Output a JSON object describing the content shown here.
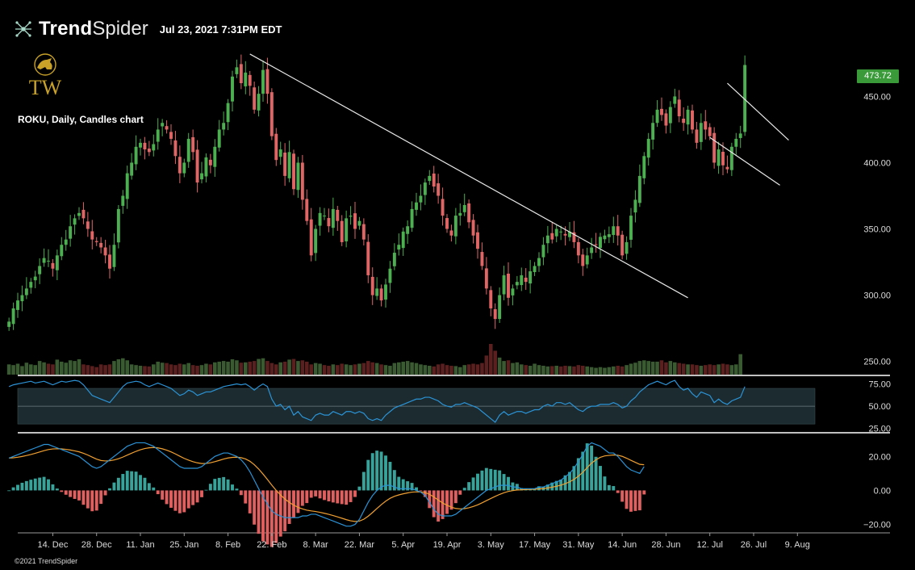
{
  "header": {
    "brand_bold": "Trend",
    "brand_light": "Spider",
    "timestamp": "Jul 23, 2021 7:31PM EDT"
  },
  "logo": {
    "initials": "TW",
    "color": "#c9a227"
  },
  "chart_title": "ROKU, Daily, Candles chart",
  "last_price_label": "473.72",
  "copyright": "©2021 TrendSpider",
  "colors": {
    "up": "#4caf50",
    "down": "#e06666",
    "volume_up": "#3a5a32",
    "volume_down": "#5a1f1f",
    "rsi_line": "#2b93d6",
    "macd_line": "#2b93d6",
    "signal_line": "#f0a030",
    "hist_up": "#37a39a",
    "hist_down": "#e06060",
    "trendline": "#e8e8e8"
  },
  "chart_data": [
    {
      "type": "candlestick",
      "title": "ROKU, Daily, Candles chart",
      "ylim": [
        240,
        485
      ],
      "y_ticks": [
        "450.00",
        "400.00",
        "350.00",
        "300.00",
        "250.00"
      ],
      "y_tick_values": [
        450,
        400,
        350,
        300,
        250
      ],
      "x_ticks": [
        "14. Dec",
        "28. Dec",
        "11. Jan",
        "25. Jan",
        "8. Feb",
        "22. Feb",
        "8. Mar",
        "22. Mar",
        "5. Apr",
        "19. Apr",
        "3. May",
        "17. May",
        "31. May",
        "14. Jun",
        "28. Jun",
        "12. Jul",
        "26. Jul",
        "9. Aug"
      ],
      "x_tick_index": [
        10,
        20,
        30,
        40,
        50,
        60,
        70,
        80,
        90,
        100,
        110,
        120,
        130,
        140,
        150,
        160,
        170,
        180
      ],
      "x_range": [
        2,
        184
      ],
      "closes": [
        280,
        290,
        296,
        300,
        305,
        310,
        314,
        322,
        328,
        326,
        320,
        330,
        338,
        342,
        352,
        358,
        362,
        358,
        350,
        342,
        340,
        336,
        330,
        320,
        338,
        365,
        375,
        392,
        400,
        412,
        415,
        410,
        408,
        414,
        425,
        430,
        425,
        418,
        405,
        392,
        400,
        418,
        408,
        385,
        392,
        404,
        398,
        412,
        425,
        430,
        445,
        465,
        472,
        460,
        468,
        458,
        440,
        452,
        470,
        452,
        420,
        402,
        410,
        390,
        408,
        380,
        400,
        372,
        356,
        330,
        350,
        362,
        360,
        352,
        365,
        356,
        340,
        358,
        360,
        350,
        356,
        342,
        315,
        300,
        305,
        296,
        308,
        320,
        332,
        338,
        348,
        352,
        365,
        370,
        375,
        385,
        390,
        382,
        375,
        360,
        350,
        345,
        360,
        362,
        368,
        355,
        345,
        335,
        322,
        305,
        290,
        282,
        300,
        315,
        298,
        305,
        310,
        315,
        310,
        318,
        322,
        328,
        338,
        345,
        342,
        350,
        348,
        345,
        348,
        340,
        330,
        322,
        330,
        336,
        338,
        344,
        345,
        346,
        352,
        345,
        330,
        340,
        360,
        372,
        390,
        405,
        418,
        430,
        440,
        436,
        428,
        442,
        450,
        435,
        430,
        440,
        425,
        415,
        430,
        425,
        420,
        400,
        410,
        398,
        395,
        412,
        418,
        422,
        473.72
      ],
      "volumes": [
        30,
        28,
        32,
        25,
        35,
        30,
        28,
        40,
        36,
        32,
        30,
        44,
        38,
        35,
        42,
        40,
        45,
        30,
        28,
        25,
        22,
        30,
        28,
        30,
        40,
        45,
        48,
        42,
        30,
        28,
        26,
        25,
        24,
        30,
        38,
        35,
        34,
        30,
        28,
        32,
        30,
        34,
        28,
        26,
        28,
        32,
        30,
        36,
        38,
        40,
        38,
        45,
        42,
        35,
        36,
        38,
        40,
        46,
        48,
        40,
        34,
        30,
        36,
        38,
        44,
        46,
        40,
        42,
        38,
        30,
        34,
        32,
        28,
        26,
        30,
        28,
        32,
        30,
        28,
        30,
        32,
        34,
        40,
        36,
        34,
        30,
        28,
        26,
        34,
        36,
        38,
        40,
        36,
        34,
        30,
        28,
        26,
        24,
        30,
        32,
        28,
        26,
        25,
        22,
        28,
        30,
        32,
        30,
        34,
        56,
        90,
        70,
        50,
        40,
        42,
        34,
        36,
        30,
        28,
        26,
        32,
        28,
        26,
        24,
        25,
        26,
        24,
        26,
        25,
        24,
        28,
        26,
        24,
        22,
        20,
        22,
        20,
        22,
        24,
        26,
        24,
        28,
        32,
        35,
        40,
        42,
        40,
        38,
        38,
        42,
        36,
        40,
        36,
        34,
        32,
        30,
        30,
        28,
        26,
        28,
        30,
        28,
        30,
        32,
        30,
        28,
        30,
        60
      ],
      "trendlines": [
        {
          "from": [
            55,
            482
          ],
          "to": [
            155,
            298
          ]
        },
        {
          "from": [
            164,
            460
          ],
          "to": [
            178,
            417
          ]
        },
        {
          "from": [
            160,
            419
          ],
          "to": [
            176,
            383
          ]
        }
      ]
    },
    {
      "type": "line",
      "name": "RSI",
      "ylim": [
        22,
        80
      ],
      "y_ticks": [
        "75.00",
        "50.00",
        "25.00"
      ],
      "y_tick_values": [
        75,
        50,
        25
      ],
      "band": [
        30,
        70
      ],
      "midline": 50,
      "values": [
        72,
        74,
        75,
        76,
        77,
        78,
        76,
        77,
        78,
        76,
        74,
        76,
        78,
        77,
        78,
        79,
        78,
        74,
        68,
        62,
        60,
        58,
        56,
        54,
        60,
        66,
        72,
        76,
        77,
        78,
        77,
        74,
        72,
        74,
        76,
        74,
        72,
        70,
        66,
        62,
        64,
        68,
        66,
        62,
        64,
        66,
        66,
        68,
        70,
        72,
        73,
        74,
        75,
        74,
        75,
        72,
        68,
        72,
        75,
        72,
        58,
        50,
        52,
        46,
        50,
        40,
        44,
        38,
        36,
        34,
        40,
        42,
        40,
        40,
        44,
        42,
        40,
        44,
        44,
        42,
        44,
        42,
        36,
        34,
        36,
        34,
        40,
        44,
        48,
        50,
        52,
        54,
        56,
        58,
        58,
        60,
        60,
        58,
        56,
        52,
        50,
        49,
        52,
        52,
        54,
        52,
        50,
        48,
        44,
        40,
        36,
        32,
        40,
        44,
        40,
        42,
        44,
        44,
        42,
        44,
        46,
        46,
        50,
        52,
        50,
        54,
        54,
        52,
        54,
        50,
        46,
        44,
        48,
        50,
        50,
        52,
        52,
        52,
        54,
        52,
        48,
        50,
        56,
        60,
        66,
        70,
        74,
        76,
        78,
        76,
        74,
        77,
        79,
        72,
        68,
        70,
        64,
        60,
        66,
        64,
        62,
        54,
        58,
        54,
        52,
        56,
        58,
        60,
        72
      ]
    },
    {
      "type": "line",
      "name": "MACD",
      "ylim": [
        -24,
        32
      ],
      "y_ticks": [
        "20.00",
        "0.00",
        "−20.00"
      ],
      "y_tick_values": [
        20,
        0,
        -20
      ],
      "macd": [
        19,
        20,
        21,
        22,
        23,
        24,
        25,
        26,
        27,
        27,
        26,
        25,
        24,
        23,
        22,
        21,
        20,
        18,
        16,
        14,
        13,
        14,
        16,
        18,
        20,
        22,
        24,
        26,
        27,
        28,
        28,
        28,
        27,
        26,
        24,
        22,
        20,
        18,
        16,
        14,
        13,
        13,
        13,
        13,
        14,
        16,
        18,
        20,
        21,
        22,
        22,
        21,
        20,
        18,
        15,
        11,
        6,
        1,
        -4,
        -8,
        -12,
        -14,
        -15,
        -16,
        -16,
        -16,
        -16,
        -15,
        -15,
        -14,
        -14,
        -15,
        -16,
        -17,
        -18,
        -19,
        -20,
        -21,
        -21,
        -20,
        -17,
        -12,
        -7,
        -3,
        0,
        2,
        3,
        3,
        2,
        1,
        1,
        1,
        1,
        0,
        -1,
        -3,
        -7,
        -11,
        -14,
        -15,
        -15,
        -15,
        -14,
        -12,
        -10,
        -8,
        -6,
        -4,
        -2,
        0,
        1,
        2,
        3,
        3,
        3,
        2,
        2,
        1,
        1,
        1,
        1,
        2,
        2,
        3,
        4,
        5,
        6,
        8,
        10,
        13,
        17,
        21,
        26,
        28,
        27,
        26,
        24,
        22,
        22,
        20,
        17,
        14,
        12,
        11,
        10,
        14
      ]
    }
  ]
}
